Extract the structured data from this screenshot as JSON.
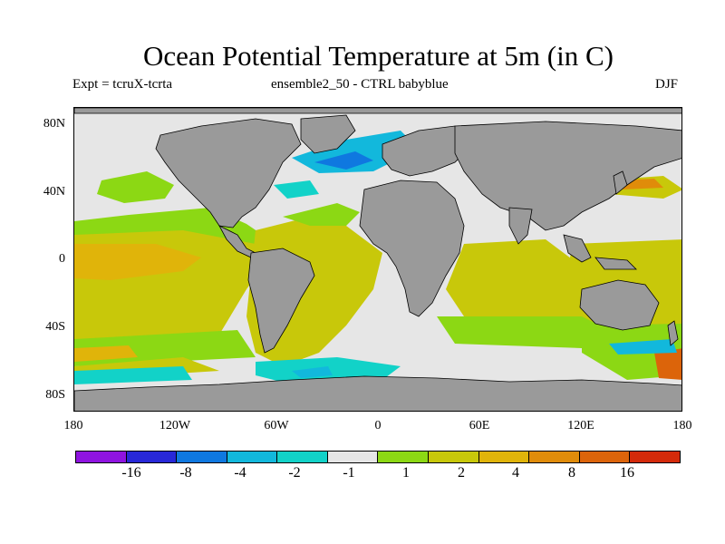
{
  "title": "Ocean Potential Temperature at 5m (in C)",
  "subtitle": {
    "left": "Expt = tcruX-tcrta",
    "center": "ensemble2_50 - CTRL babyblue",
    "right": "DJF"
  },
  "map": {
    "projection": "equirectangular",
    "lon_range": [
      -180,
      180
    ],
    "lat_range": [
      -90,
      90
    ],
    "lat_ticks": [
      "80N",
      "40N",
      "0",
      "40S",
      "80S"
    ],
    "lon_ticks": [
      "180",
      "120W",
      "60W",
      "0",
      "60E",
      "120E",
      "180"
    ],
    "colors": {
      "land": "#9a9a9a",
      "neutral": "#e6e6e6",
      "coast": "#000000"
    }
  },
  "colorbar": {
    "colors": [
      "#8f14e0",
      "#2828d8",
      "#0f78e0",
      "#12b8dc",
      "#12d2c8",
      "#e6e6e6",
      "#8cd814",
      "#c8c80a",
      "#e0b40a",
      "#e08c0a",
      "#dc640a",
      "#d42a0a"
    ],
    "labels": [
      "-16",
      "-8",
      "-4",
      "-2",
      "-1",
      "1",
      "2",
      "4",
      "8",
      "16"
    ]
  }
}
